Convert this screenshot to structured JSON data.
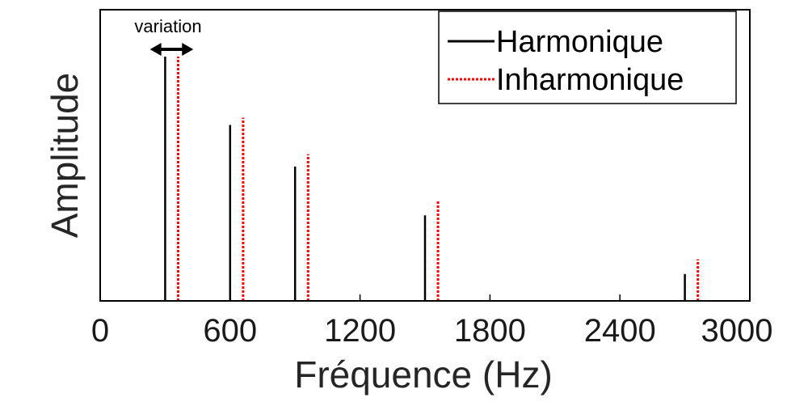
{
  "chart_data": {
    "type": "bar",
    "xlabel": "Fréquence (Hz)",
    "ylabel": "Amplitude",
    "xlim": [
      0,
      3000
    ],
    "ylim": [
      0,
      1
    ],
    "x_ticks": [
      "0",
      "600",
      "1200",
      "1800",
      "2400",
      "3000"
    ],
    "grid": false,
    "legend_position": "top-right",
    "series": [
      {
        "name": "Harmonique",
        "color": "#000000",
        "style": "solid",
        "x": [
          300,
          600,
          900,
          1500,
          2700
        ],
        "values": [
          1.0,
          0.72,
          0.55,
          0.35,
          0.11
        ]
      },
      {
        "name": "Inharmonique",
        "color": "#ff0000",
        "style": "dotted",
        "x": [
          360,
          660,
          960,
          1560,
          2760
        ],
        "values": [
          1.0,
          0.75,
          0.6,
          0.41,
          0.17
        ]
      }
    ],
    "annotations": [
      {
        "text": "variation",
        "arrow": "double-headed",
        "from_x": 230,
        "to_x": 430
      }
    ]
  }
}
